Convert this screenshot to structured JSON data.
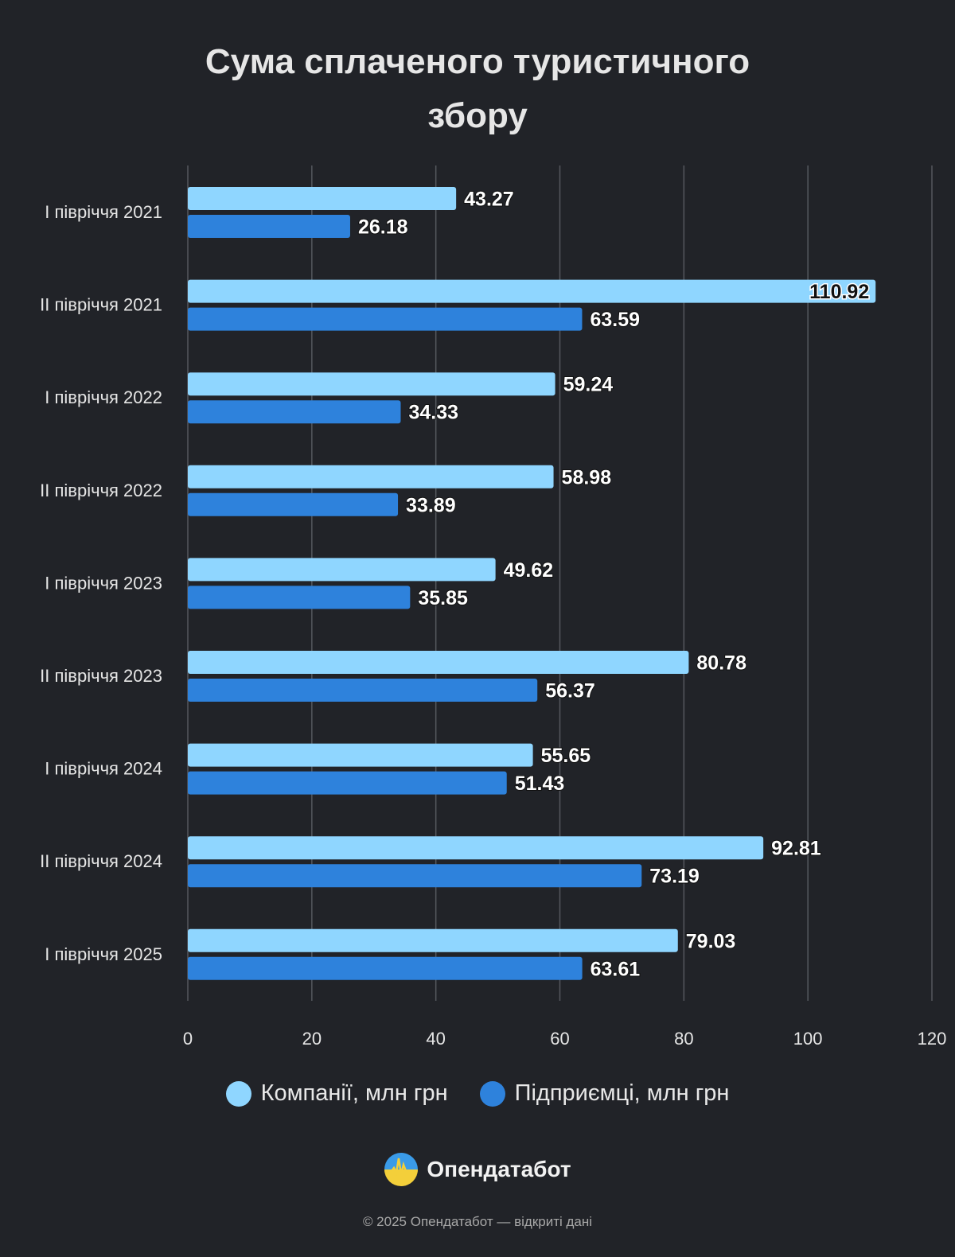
{
  "chart_data": {
    "type": "bar",
    "orientation": "horizontal",
    "title": "Сума сплаченого туристичного збору",
    "title_lines": [
      "Сума сплаченого туристичного",
      "збору"
    ],
    "categories": [
      "І півріччя 2021",
      "ІІ півріччя 2021",
      "І півріччя 2022",
      "ІІ півріччя 2022",
      "І півріччя 2023",
      "ІІ півріччя 2023",
      "І півріччя 2024",
      "ІІ півріччя 2024",
      "І півріччя 2025"
    ],
    "series": [
      {
        "name": "Компанії, млн грн",
        "color": "#8fd6ff",
        "values": [
          43.27,
          110.92,
          59.24,
          58.98,
          49.62,
          80.78,
          55.65,
          92.81,
          79.03
        ]
      },
      {
        "name": "Підприємці, млн грн",
        "color": "#2e82dc",
        "values": [
          26.18,
          63.59,
          34.33,
          33.89,
          35.85,
          56.37,
          51.43,
          73.19,
          63.61
        ]
      }
    ],
    "xlim": [
      0,
      120
    ],
    "xticks": [
      "0",
      "20",
      "40",
      "60",
      "80",
      "100",
      "120"
    ],
    "grid": true,
    "legend_position": "bottom"
  },
  "brand": {
    "name": "Опендатабот",
    "logo_icon": "opendatabot-logo-icon"
  },
  "footer": "© 2025 Опендатабот — відкриті дані"
}
